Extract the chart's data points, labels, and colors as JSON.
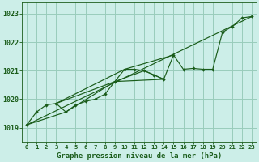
{
  "title": "Graphe pression niveau de la mer (hPa)",
  "background_color": "#cceee8",
  "grid_color": "#99ccbb",
  "line_color": "#1a5c1a",
  "xlim": [
    -0.5,
    23.5
  ],
  "ylim": [
    1018.5,
    1023.4
  ],
  "yticks": [
    1019,
    1020,
    1021,
    1022,
    1023
  ],
  "xticks": [
    0,
    1,
    2,
    3,
    4,
    5,
    6,
    7,
    8,
    9,
    10,
    11,
    12,
    13,
    14,
    15,
    16,
    17,
    18,
    19,
    20,
    21,
    22,
    23
  ],
  "series": [
    [
      0,
      1019.1
    ],
    [
      1,
      1019.55
    ],
    [
      2,
      1019.8
    ],
    [
      3,
      1019.85
    ],
    [
      4,
      1019.55
    ],
    [
      5,
      1019.8
    ],
    [
      6,
      1019.92
    ],
    [
      7,
      1020.0
    ],
    [
      8,
      1020.18
    ],
    [
      9,
      1020.62
    ],
    [
      10,
      1021.05
    ],
    [
      11,
      1021.05
    ],
    [
      12,
      1021.0
    ],
    [
      13,
      1020.85
    ],
    [
      14,
      1020.7
    ],
    [
      15,
      1021.55
    ],
    [
      16,
      1021.05
    ],
    [
      17,
      1021.08
    ],
    [
      18,
      1021.05
    ],
    [
      19,
      1021.05
    ],
    [
      20,
      1022.35
    ],
    [
      21,
      1022.55
    ],
    [
      22,
      1022.85
    ],
    [
      23,
      1022.9
    ]
  ],
  "extra_lines": [
    [
      [
        0,
        1019.1
      ],
      [
        23,
        1022.9
      ]
    ],
    [
      [
        3,
        1019.85
      ],
      [
        10,
        1021.05
      ],
      [
        15,
        1021.55
      ]
    ],
    [
      [
        3,
        1019.85
      ],
      [
        9,
        1020.62
      ],
      [
        12,
        1021.0
      ],
      [
        14,
        1020.7
      ]
    ],
    [
      [
        0,
        1019.1
      ],
      [
        4,
        1019.55
      ],
      [
        9,
        1020.62
      ],
      [
        14,
        1020.7
      ]
    ]
  ]
}
